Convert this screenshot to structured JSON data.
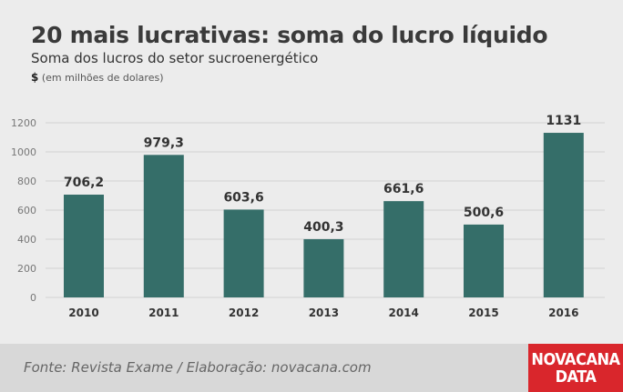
{
  "header": {
    "title": "20 mais lucrativas: soma do lucro líquido",
    "subtitle": "Soma dos lucros do setor sucroenergético",
    "unit_symbol": "$",
    "unit_text": "(em milhões de dolares)"
  },
  "footer": {
    "source": "Fonte: Revista Exame / Elaboração: novacana.com",
    "logo_line1": "NOVACANA",
    "logo_line2": "DATA"
  },
  "colors": {
    "bar": "#356e69",
    "grid": "#d2d2d2",
    "logo": "#d9262c"
  },
  "chart_data": {
    "type": "bar",
    "categories": [
      "2010",
      "2011",
      "2012",
      "2013",
      "2014",
      "2015",
      "2016"
    ],
    "values": [
      706.2,
      979.3,
      603.6,
      400.3,
      661.6,
      500.6,
      1131
    ],
    "value_labels": [
      "706,2",
      "979,3",
      "603,6",
      "400,3",
      "661,6",
      "500,6",
      "1131"
    ],
    "yticks": [
      0,
      200,
      400,
      600,
      800,
      1000,
      1200
    ],
    "ylim": [
      0,
      1200
    ],
    "grid": true
  }
}
